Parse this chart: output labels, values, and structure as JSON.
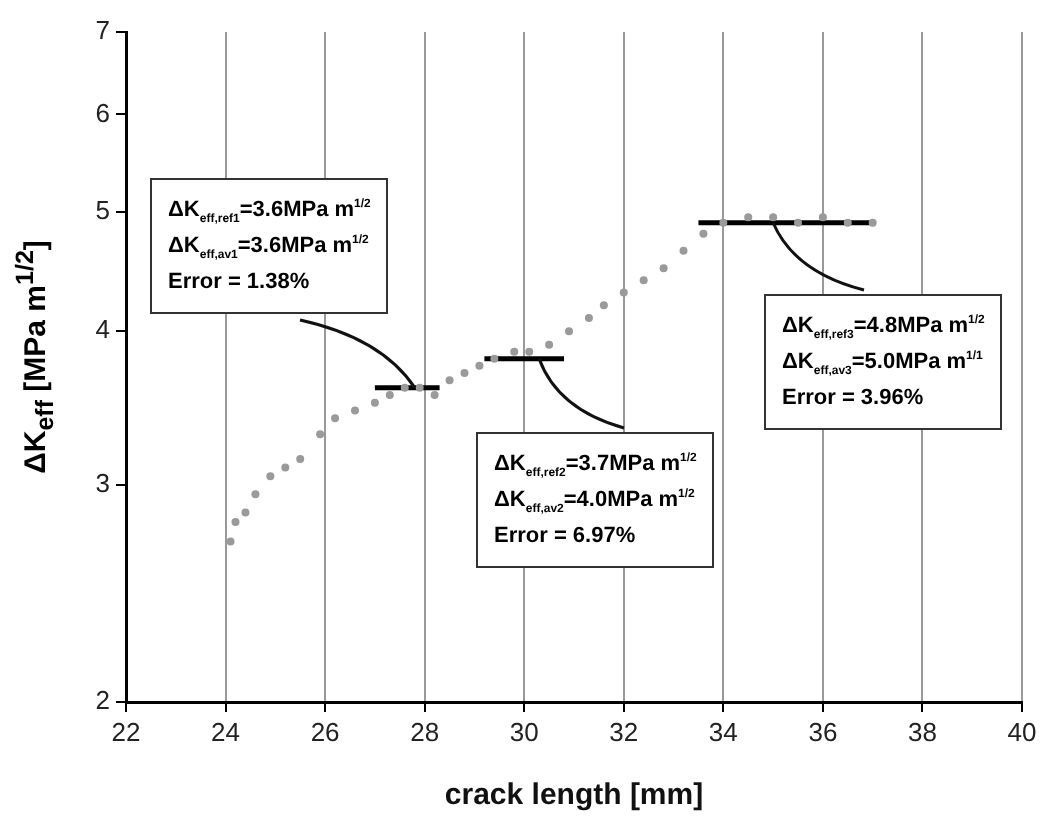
{
  "chart_data": {
    "type": "scatter",
    "xlabel": "crack length [mm]",
    "ylabel": "ΔK$_{eff}$ [MPa m$^{1/2}$]",
    "xlim": [
      22,
      40
    ],
    "xticks": [
      22,
      24,
      26,
      28,
      30,
      32,
      34,
      36,
      38,
      40
    ],
    "ylim": [
      2,
      7
    ],
    "yticks": [
      2,
      3,
      4,
      5,
      6,
      7
    ],
    "log": "y",
    "grid": "x",
    "legend": false,
    "series": [
      {
        "type": "scatter",
        "marker": "circle",
        "color": "#9a9a9a",
        "x": [
          24.1,
          24.2,
          24.4,
          24.6,
          24.9,
          25.2,
          25.5,
          25.9,
          26.2,
          26.6,
          27.0,
          27.3,
          27.6,
          27.9,
          28.2,
          28.5,
          28.8,
          29.1,
          29.4,
          29.8,
          30.1,
          30.5,
          30.9,
          31.3,
          31.6,
          32.0,
          32.4,
          32.8,
          33.2,
          33.6,
          34.0,
          34.5,
          35.0,
          35.5,
          36.0,
          36.5,
          37.0
        ],
        "values": [
          2.7,
          2.8,
          2.85,
          2.95,
          3.05,
          3.1,
          3.15,
          3.3,
          3.4,
          3.45,
          3.5,
          3.55,
          3.6,
          3.6,
          3.55,
          3.65,
          3.7,
          3.75,
          3.8,
          3.85,
          3.85,
          3.9,
          4.0,
          4.1,
          4.2,
          4.3,
          4.4,
          4.5,
          4.65,
          4.8,
          4.9,
          4.95,
          4.95,
          4.9,
          4.95,
          4.9,
          4.9
        ]
      },
      {
        "type": "line",
        "marker": "none",
        "color": "#000000",
        "x": [
          27,
          28.3
        ],
        "values": [
          3.6,
          3.6
        ]
      },
      {
        "type": "line",
        "marker": "none",
        "color": "#000000",
        "x": [
          29.2,
          30.8
        ],
        "values": [
          3.8,
          3.8
        ]
      },
      {
        "type": "line",
        "marker": "none",
        "color": "#000000",
        "x": [
          33.5,
          37
        ],
        "values": [
          4.9,
          4.9
        ]
      }
    ],
    "annotations": [
      "ΔK$_{eff,ref1}$=3.6MPa m$^{1/2}$",
      "ΔK$_{eff,av1}$=3.6MPa m$^{1/2}$",
      {
        "text": "Error = 1.38%",
        "x": 27.8,
        "y": 3.6
      },
      {
        "text": "ΔK$_{eff,ref2}$=3.7MPa m$^{1/2}$",
        "x": 30.3,
        "y": 3.8
      },
      "ΔK$_{eff,av2}$=4.0MPa m$^{1/2}$",
      "Error = 6.97%",
      {
        "text": "ΔK$_{eff,ref3}$=4.8MPa m$^{1/2}$",
        "x": 35,
        "y": 4.9
      },
      "ΔK$_{eff,av3}$=5.0MPa m$^{1/1}$",
      "Error = 3.96%"
    ]
  }
}
